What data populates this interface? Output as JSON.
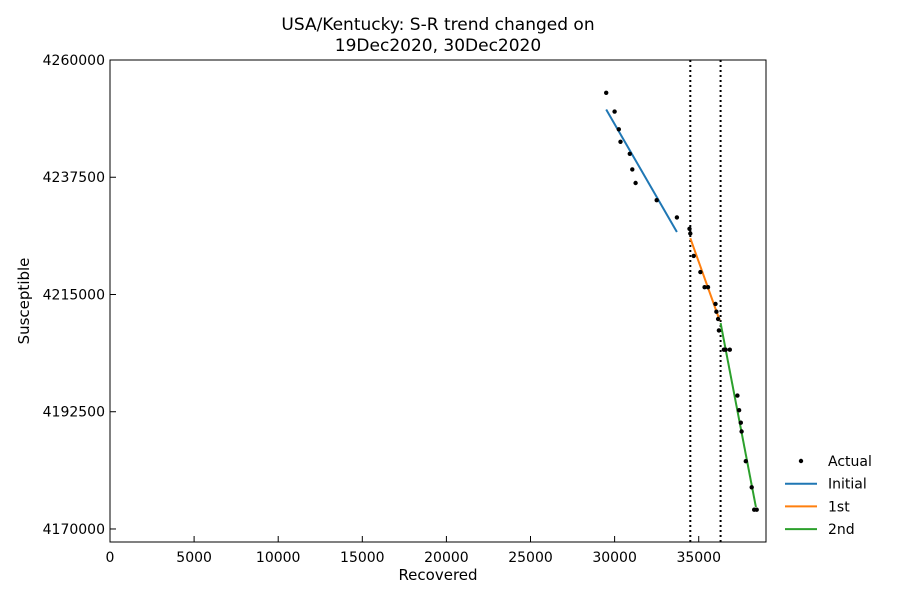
{
  "chart_data": {
    "type": "scatter",
    "title_line1": "USA/Kentucky: S-R trend changed on",
    "title_line2": "19Dec2020, 30Dec2020",
    "xlabel": "Recovered",
    "ylabel": "Susceptible",
    "xlim": [
      0,
      39000
    ],
    "ylim": [
      4167500,
      4260000
    ],
    "xticks": [
      0,
      5000,
      10000,
      15000,
      20000,
      25000,
      30000,
      35000
    ],
    "yticks": [
      4170000,
      4192500,
      4215000,
      4237500,
      4260000
    ],
    "xtick_labels": [
      "0",
      "5000",
      "10000",
      "15000",
      "20000",
      "25000",
      "30000",
      "35000"
    ],
    "ytick_labels": [
      "4170000",
      "4192500",
      "4215000",
      "4237500",
      "4260000"
    ],
    "change_points_x": [
      34500,
      36300
    ],
    "legend_position": "outside-right-bottom",
    "legend": [
      "Actual",
      "Initial",
      "1st",
      "2nd"
    ],
    "series": [
      {
        "name": "Actual",
        "kind": "scatter",
        "color": "#000000",
        "points": [
          [
            29500,
            4253700
          ],
          [
            30000,
            4250100
          ],
          [
            30250,
            4246700
          ],
          [
            30350,
            4244300
          ],
          [
            30900,
            4242000
          ],
          [
            31050,
            4239000
          ],
          [
            31250,
            4236400
          ],
          [
            32500,
            4233100
          ],
          [
            33700,
            4229800
          ],
          [
            34450,
            4227600
          ],
          [
            34500,
            4226700
          ],
          [
            34700,
            4222400
          ],
          [
            35100,
            4219300
          ],
          [
            35350,
            4216400
          ],
          [
            35550,
            4216400
          ],
          [
            36000,
            4213200
          ],
          [
            36050,
            4211700
          ],
          [
            36150,
            4210300
          ],
          [
            36200,
            4208100
          ],
          [
            36500,
            4204400
          ],
          [
            36600,
            4204400
          ],
          [
            36850,
            4204400
          ],
          [
            37300,
            4195600
          ],
          [
            37400,
            4192800
          ],
          [
            37500,
            4190400
          ],
          [
            37550,
            4188700
          ],
          [
            37800,
            4183000
          ],
          [
            38150,
            4178000
          ],
          [
            38300,
            4173700
          ],
          [
            38450,
            4173700
          ]
        ]
      },
      {
        "name": "Initial",
        "kind": "line",
        "color": "#1f77b4",
        "points": [
          [
            29500,
            4250500
          ],
          [
            33700,
            4227000
          ]
        ]
      },
      {
        "name": "1st",
        "kind": "line",
        "color": "#ff7f0e",
        "points": [
          [
            34500,
            4225800
          ],
          [
            36250,
            4210000
          ]
        ]
      },
      {
        "name": "2nd",
        "kind": "line",
        "color": "#2ca02c",
        "points": [
          [
            36300,
            4209500
          ],
          [
            38400,
            4174200
          ]
        ]
      }
    ]
  }
}
